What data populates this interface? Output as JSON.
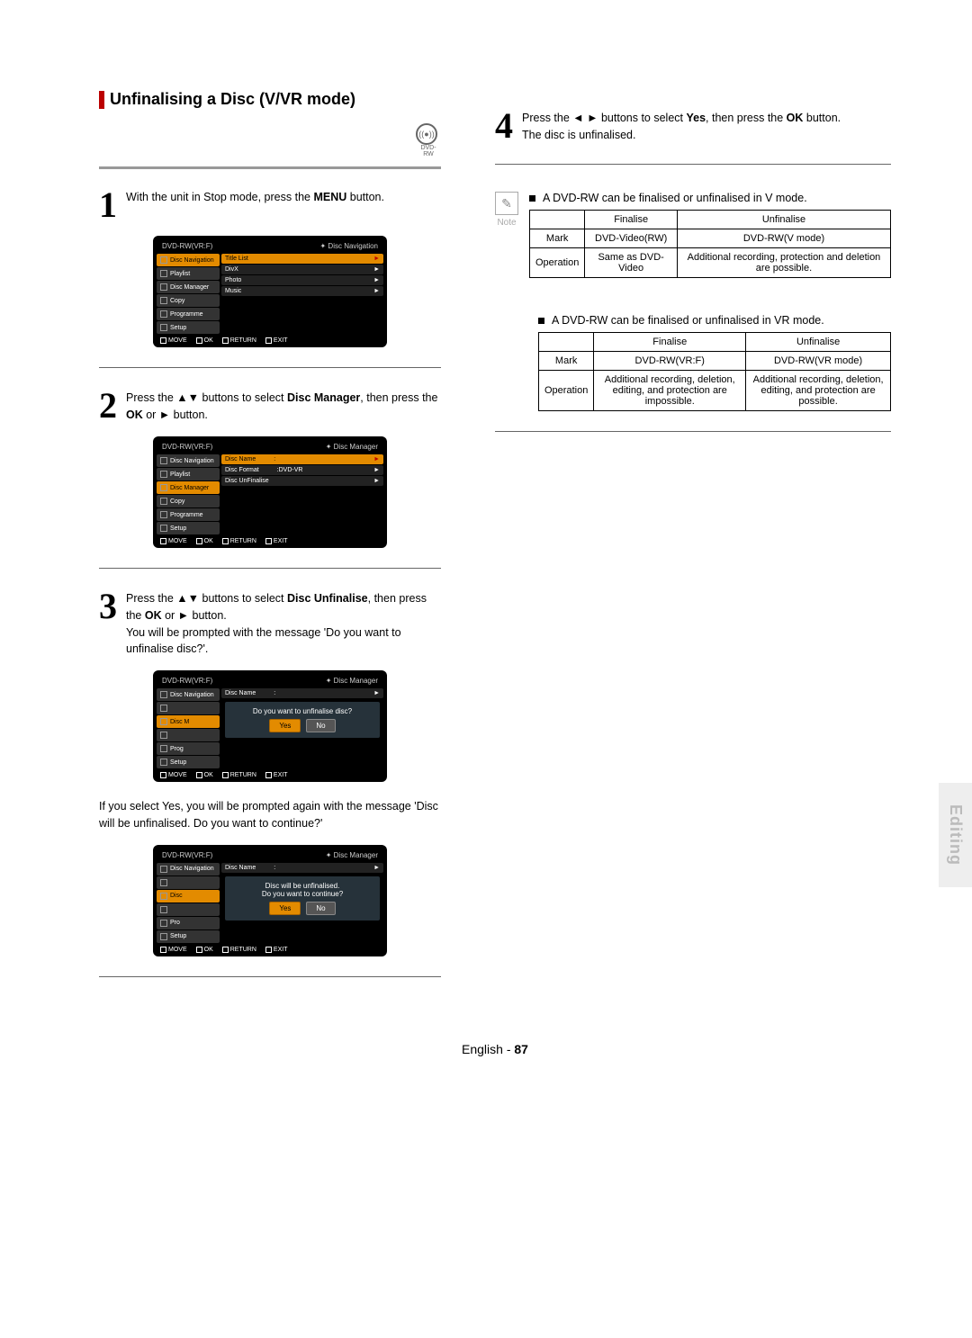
{
  "heading": "Unfinalising a Disc (V/VR mode)",
  "disc_label": "DVD-RW",
  "steps": {
    "s1": {
      "num": "1",
      "text_html": "With the unit in Stop mode, press the <b>MENU</b> button."
    },
    "s2": {
      "num": "2",
      "text_html": "Press the ▲▼ buttons to select <b>Disc Manager</b>, then press the <b>OK</b> or ► button."
    },
    "s3": {
      "num": "3",
      "text_html": "Press the ▲▼ buttons to select <b>Disc Unfinalise</b>, then press the <b>OK</b> or ► button.<br>You will be prompted with the message 'Do you want to unfinalise disc?'.",
      "after_html": "If you select Yes, you will be prompted again with the message 'Disc will be unfinalised. Do you want to continue?'"
    },
    "s4": {
      "num": "4",
      "text_html": "Press the ◄ ► buttons to select <b>Yes</b>, then press the <b>OK</b> button.<br>The disc is unfinalised."
    }
  },
  "osd_common": {
    "title": "DVD-RW(VR:F)",
    "footer": [
      "MOVE",
      "OK",
      "RETURN",
      "EXIT"
    ],
    "side_items": [
      "Disc Navigation",
      "Playlist",
      "Disc Manager",
      "Copy",
      "Programme",
      "Setup"
    ]
  },
  "osd1": {
    "crumb": "Disc Navigation",
    "selected_side": 0,
    "rows": [
      {
        "label": "Title List",
        "sel": true
      },
      {
        "label": "DivX"
      },
      {
        "label": "Photo"
      },
      {
        "label": "Music"
      }
    ]
  },
  "osd2": {
    "crumb": "Disc Manager",
    "selected_side": 2,
    "rows": [
      {
        "label": "Disc Name",
        "val": ":",
        "sel": true
      },
      {
        "label": "Disc Format",
        "val": ":DVD-VR"
      },
      {
        "label": "Disc UnFinalise"
      }
    ]
  },
  "osd3": {
    "crumb": "Disc Manager",
    "selected_side": 2,
    "rows": [
      {
        "label": "Disc Name",
        "val": ":"
      }
    ],
    "dialog": {
      "lines": [
        "Do you want to unfinalise disc?"
      ],
      "yes_sel": true
    },
    "side_truncated": [
      "Disc Navigation",
      "",
      "Disc M",
      "",
      "Prog",
      "Setup"
    ]
  },
  "osd4": {
    "crumb": "Disc Manager",
    "selected_side": 2,
    "rows": [
      {
        "label": "Disc Name",
        "val": ":"
      }
    ],
    "dialog": {
      "lines": [
        "Disc will be unfinalised.",
        "Do you want to continue?"
      ],
      "yes_sel": true
    },
    "side_truncated": [
      "Disc Navigation",
      "",
      "Disc",
      "",
      "Pro",
      "Setup"
    ]
  },
  "note1": {
    "label": "Note",
    "text": "A DVD-RW can be finalised or unfinalised in V mode."
  },
  "note2": {
    "text": "A DVD-RW can be finalised or unfinalised in VR mode."
  },
  "table1": {
    "headers": [
      "",
      "Finalise",
      "Unfinalise"
    ],
    "rows": [
      [
        "Mark",
        "DVD-Video(RW)",
        "DVD-RW(V mode)"
      ],
      [
        "Operation",
        "Same as DVD-Video",
        "Additional recording, protection and deletion are possible."
      ]
    ]
  },
  "table2": {
    "headers": [
      "",
      "Finalise",
      "Unfinalise"
    ],
    "rows": [
      [
        "Mark",
        "DVD-RW(VR:F)",
        "DVD-RW(VR mode)"
      ],
      [
        "Operation",
        "Additional recording, deletion, editing, and protection are impossible.",
        "Additional recording, deletion, editing, and protection are possible."
      ]
    ]
  },
  "side_tab": "Editing",
  "page_foot": {
    "lang": "English",
    "dash": " - ",
    "num": "87"
  },
  "colors": {
    "accent": "#e38b00",
    "accent_red": "#b00",
    "osd_bg": "#000000",
    "gray_bar": "#999999"
  }
}
